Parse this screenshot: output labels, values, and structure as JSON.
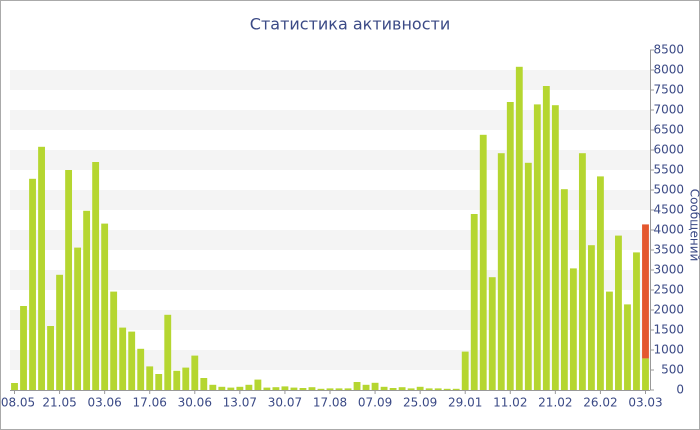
{
  "chart_data": {
    "type": "bar",
    "title": "Статистика активности",
    "y_axis_label": "Сообщений",
    "categories": [
      "08.05",
      null,
      null,
      null,
      null,
      "21.05",
      null,
      null,
      null,
      null,
      "03.06",
      null,
      null,
      null,
      null,
      "17.06",
      null,
      null,
      null,
      null,
      "30.06",
      null,
      null,
      null,
      null,
      "13.07",
      null,
      null,
      null,
      null,
      "30.07",
      null,
      null,
      null,
      null,
      "17.08",
      null,
      null,
      null,
      null,
      "07.09",
      null,
      null,
      null,
      null,
      "25.09",
      null,
      null,
      null,
      null,
      "29.01",
      null,
      null,
      null,
      null,
      "11.02",
      null,
      null,
      null,
      null,
      "21.02",
      null,
      null,
      null,
      null,
      "26.02",
      null,
      null,
      null,
      null,
      "03.03"
    ],
    "series": [
      {
        "color": "#b5d630",
        "values": [
          175,
          2100,
          5280,
          6080,
          1600,
          2880,
          5500,
          3560,
          4480,
          5700,
          4160,
          2460,
          1560,
          1460,
          1030,
          590,
          400,
          1880,
          480,
          560,
          860,
          300,
          130,
          80,
          60,
          80,
          130,
          260,
          60,
          70,
          90,
          60,
          50,
          70,
          30,
          40,
          40,
          40,
          200,
          130,
          180,
          80,
          50,
          70,
          40,
          80,
          40,
          40,
          30,
          30,
          960,
          4400,
          6380,
          2820,
          5920,
          7200,
          8080,
          5680,
          7140,
          7600,
          7120,
          5020,
          3040,
          5920,
          3620,
          5340,
          2460,
          3860,
          2140,
          3440,
          790
        ]
      },
      {
        "color": "#e4572e",
        "values": [
          null,
          null,
          null,
          null,
          null,
          null,
          null,
          null,
          null,
          null,
          null,
          null,
          null,
          null,
          null,
          null,
          null,
          null,
          null,
          null,
          null,
          null,
          null,
          null,
          null,
          null,
          null,
          null,
          null,
          null,
          null,
          null,
          null,
          null,
          null,
          null,
          null,
          null,
          null,
          null,
          null,
          null,
          null,
          null,
          null,
          null,
          null,
          null,
          null,
          null,
          null,
          null,
          null,
          null,
          null,
          null,
          null,
          null,
          null,
          null,
          null,
          null,
          null,
          null,
          null,
          null,
          null,
          null,
          null,
          null,
          3350
        ]
      }
    ],
    "ylim": [
      0,
      8500
    ],
    "yticks": [
      0,
      500,
      1000,
      1500,
      2000,
      2500,
      3000,
      3500,
      4000,
      4500,
      5000,
      5500,
      6000,
      6500,
      7000,
      7500,
      8000,
      8500
    ],
    "grid": true,
    "stacked": true
  }
}
